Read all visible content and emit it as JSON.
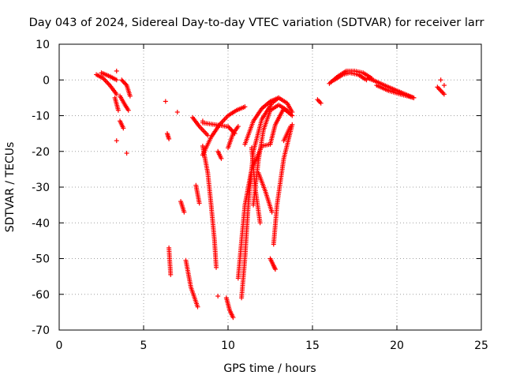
{
  "chart_data": {
    "type": "scatter",
    "title": "Day 043 of 2024, Sidereal Day-to-day VTEC variation (SDTVAR) for receiver larr",
    "xlabel": "GPS time / hours",
    "ylabel": "SDTVAR / TECUs",
    "xlim": [
      0,
      25
    ],
    "ylim": [
      -70,
      10
    ],
    "x_ticks": [
      "0",
      "5",
      "10",
      "15",
      "20",
      "25"
    ],
    "y_ticks": [
      "10",
      "0",
      "-10",
      "-20",
      "-30",
      "-40",
      "-50",
      "-60",
      "-70"
    ],
    "grid": true,
    "marker": "+",
    "marker_color": "#ff0000",
    "segments": [
      {
        "x": [
          2.2,
          2.6,
          3.0,
          3.4
        ],
        "y": [
          1.5,
          0.5,
          -1.5,
          -4.0
        ]
      },
      {
        "x": [
          2.5,
          3.0,
          3.4
        ],
        "y": [
          2.0,
          1.0,
          0.0
        ]
      },
      {
        "x": [
          3.3,
          3.5
        ],
        "y": [
          -5.0,
          -8.5
        ]
      },
      {
        "x": [
          3.6,
          3.9,
          4.1
        ],
        "y": [
          -4.5,
          -7.0,
          -8.5
        ]
      },
      {
        "x": [
          3.7,
          4.0,
          4.2
        ],
        "y": [
          0.0,
          -1.5,
          -4.5
        ]
      },
      {
        "x": [
          3.6,
          3.8
        ],
        "y": [
          -11.5,
          -13.5
        ]
      },
      {
        "x": [
          6.4,
          6.5
        ],
        "y": [
          -15.0,
          -16.5
        ]
      },
      {
        "x": [
          6.5,
          6.6
        ],
        "y": [
          -47.0,
          -54.5
        ]
      },
      {
        "x": [
          7.2,
          7.4
        ],
        "y": [
          -34.0,
          -37.0
        ]
      },
      {
        "x": [
          7.5,
          7.8,
          8.2
        ],
        "y": [
          -50.5,
          -58.0,
          -63.5
        ]
      },
      {
        "x": [
          7.9,
          8.3,
          8.8
        ],
        "y": [
          -10.5,
          -13.0,
          -15.5
        ]
      },
      {
        "x": [
          8.1,
          8.3
        ],
        "y": [
          -29.5,
          -34.5
        ]
      },
      {
        "x": [
          8.5,
          9.2,
          9.9
        ],
        "y": [
          -12.0,
          -12.5,
          -13.0
        ]
      },
      {
        "x": [
          8.5,
          8.8,
          9.0,
          9.2,
          9.3
        ],
        "y": [
          -18.5,
          -26.0,
          -35.0,
          -45.0,
          -52.5
        ]
      },
      {
        "x": [
          8.5,
          9.0,
          9.5,
          10.0,
          10.5,
          11.0
        ],
        "y": [
          -21.0,
          -16.0,
          -12.5,
          -10.0,
          -8.5,
          -7.5
        ]
      },
      {
        "x": [
          9.4,
          9.6
        ],
        "y": [
          -20.0,
          -22.0
        ]
      },
      {
        "x": [
          9.9,
          10.1,
          10.3
        ],
        "y": [
          -61.0,
          -64.5,
          -66.5
        ]
      },
      {
        "x": [
          10.0,
          10.4
        ],
        "y": [
          -13.0,
          -15.0
        ]
      },
      {
        "x": [
          10.0,
          10.3,
          10.6
        ],
        "y": [
          -19.0,
          -15.0,
          -13.0
        ]
      },
      {
        "x": [
          10.6,
          10.8,
          11.0,
          11.4,
          12.0,
          12.5
        ],
        "y": [
          -55.5,
          -45.0,
          -35.0,
          -25.0,
          -18.5,
          -18.0
        ]
      },
      {
        "x": [
          10.8,
          11.0,
          11.2,
          11.5,
          12.0,
          12.6,
          13.0
        ],
        "y": [
          -61.0,
          -50.0,
          -35.0,
          -20.0,
          -11.0,
          -6.5,
          -5.0
        ]
      },
      {
        "x": [
          11.0,
          11.5,
          12.0,
          12.5,
          13.0,
          13.5,
          13.8
        ],
        "y": [
          -18.0,
          -11.5,
          -8.0,
          -6.0,
          -5.0,
          -6.5,
          -9.0
        ]
      },
      {
        "x": [
          11.4,
          11.6,
          11.9
        ],
        "y": [
          -19.0,
          -30.0,
          -40.0
        ]
      },
      {
        "x": [
          11.8,
          12.2,
          12.6
        ],
        "y": [
          -26.0,
          -31.0,
          -37.0
        ]
      },
      {
        "x": [
          11.5,
          11.8,
          12.1,
          12.5,
          13.0,
          13.5
        ],
        "y": [
          -35.0,
          -22.5,
          -14.0,
          -8.5,
          -7.0,
          -8.5
        ]
      },
      {
        "x": [
          12.5,
          12.8,
          13.3,
          13.8
        ],
        "y": [
          -18.0,
          -12.5,
          -8.0,
          -10.0
        ]
      },
      {
        "x": [
          12.5,
          12.7,
          12.8
        ],
        "y": [
          -50.0,
          -52.0,
          -53.0
        ]
      },
      {
        "x": [
          12.7,
          12.9,
          13.3,
          13.8
        ],
        "y": [
          -46.0,
          -35.0,
          -22.0,
          -12.5
        ]
      },
      {
        "x": [
          13.3,
          13.7
        ],
        "y": [
          -17.0,
          -13.0
        ]
      },
      {
        "x": [
          15.3,
          15.5
        ],
        "y": [
          -5.5,
          -6.5
        ]
      },
      {
        "x": [
          16.0,
          16.5,
          17.0,
          17.5,
          18.0,
          18.5
        ],
        "y": [
          -1.0,
          1.0,
          2.5,
          2.5,
          2.0,
          0.5
        ]
      },
      {
        "x": [
          16.3,
          16.8,
          17.2,
          17.7,
          18.2
        ],
        "y": [
          0.0,
          1.5,
          2.0,
          1.5,
          0.0
        ]
      },
      {
        "x": [
          18.3,
          18.8,
          19.5,
          20.0,
          20.5,
          21.0
        ],
        "y": [
          0.5,
          -0.5,
          -2.0,
          -3.0,
          -4.0,
          -5.0
        ]
      },
      {
        "x": [
          18.8,
          19.5,
          20.2,
          21.0
        ],
        "y": [
          -1.5,
          -3.0,
          -4.0,
          -5.0
        ]
      },
      {
        "x": [
          22.4,
          22.8
        ],
        "y": [
          -2.0,
          -4.0
        ]
      }
    ],
    "isolated_points": [
      {
        "x": 3.4,
        "y": -17.0
      },
      {
        "x": 4.0,
        "y": -20.5
      },
      {
        "x": 3.4,
        "y": 2.5
      },
      {
        "x": 6.3,
        "y": -6.0
      },
      {
        "x": 7.0,
        "y": -9.0
      },
      {
        "x": 8.5,
        "y": -11.5
      },
      {
        "x": 9.4,
        "y": -60.5
      },
      {
        "x": 22.6,
        "y": 0.0
      },
      {
        "x": 22.8,
        "y": -1.5
      }
    ]
  }
}
